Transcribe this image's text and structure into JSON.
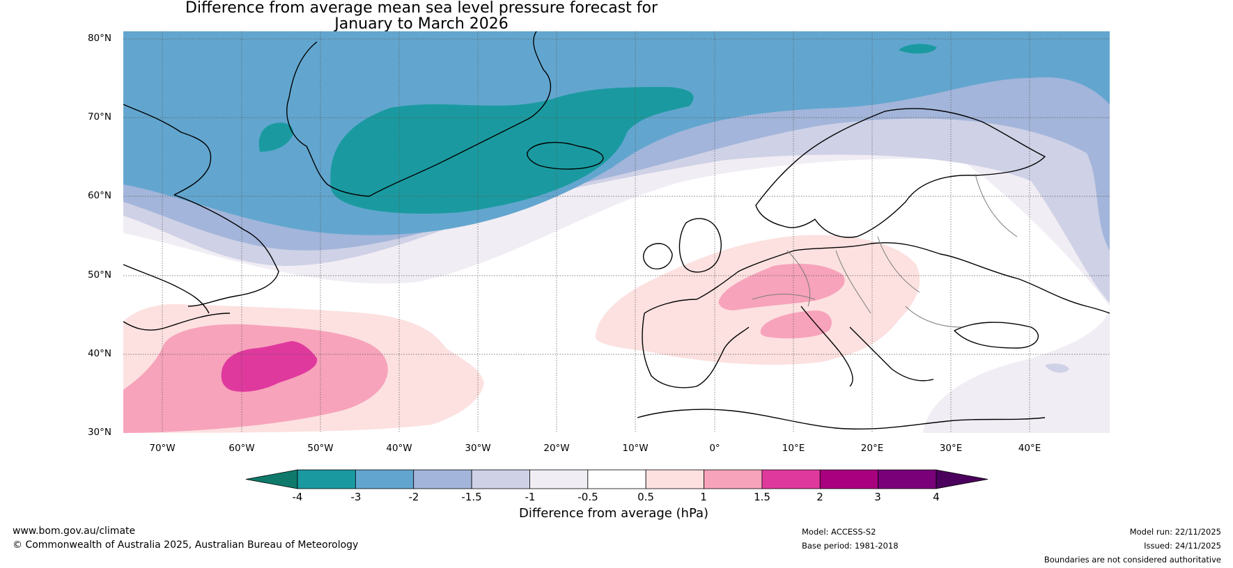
{
  "title": {
    "line1": "Difference from average mean sea level pressure forecast for",
    "line2": "January to March 2026"
  },
  "axes": {
    "lat_labels": [
      "80°N",
      "70°N",
      "60°N",
      "50°N",
      "40°N",
      "30°N"
    ],
    "lon_labels": [
      "70°W",
      "60°W",
      "50°W",
      "40°W",
      "30°W",
      "20°W",
      "10°W",
      "0°",
      "10°E",
      "20°E",
      "30°E",
      "40°E"
    ],
    "lat_range": [
      30,
      80
    ],
    "lon_range": [
      -75,
      50
    ]
  },
  "colorbar": {
    "label": "Difference from average (hPa)",
    "ticks": [
      "-4",
      "-3",
      "-2",
      "-1.5",
      "-1",
      "-0.5",
      "0.5",
      "1",
      "1.5",
      "2",
      "3",
      "4"
    ],
    "colors": [
      "#0f7a6c",
      "#1a9aa0",
      "#62a6cf",
      "#a3b5da",
      "#cfd1e6",
      "#f1edf4",
      "#ffffff",
      "#fce1e0",
      "#f7a3bb",
      "#e0399e",
      "#a8007e",
      "#790079",
      "#4a005c"
    ]
  },
  "footer": {
    "website": "www.bom.gov.au/climate",
    "copyright": "© Commonwealth of Australia 2025, Australian Bureau of Meteorology",
    "model": "Model: ACCESS-S2",
    "base_period": "Base period: 1981-2018",
    "model_run": "Model run: 22/11/2025",
    "issued": "Issued: 24/11/2025",
    "disclaimer": "Boundaries are not considered authoritative"
  }
}
